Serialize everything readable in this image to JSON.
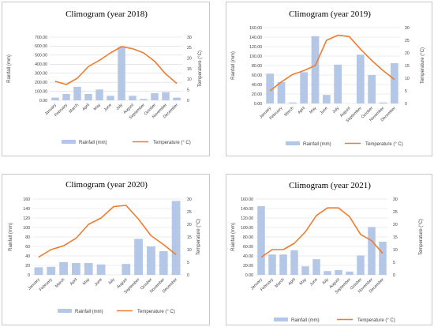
{
  "colors": {
    "rain": "#b4c7e7",
    "temp": "#ed7d31",
    "grid": "#d9d9d9",
    "text": "#404040"
  },
  "legend": {
    "rain": "Rainfall (mm)",
    "temp": "Temperature (° C)"
  },
  "chart_data": [
    {
      "type": "bar",
      "title": "Climogram (year 2018)",
      "ylabel": "Rainfall (mm)",
      "y2label": "Temperature (°C)",
      "categories": [
        "January",
        "February",
        "March",
        "April",
        "May",
        "June",
        "July",
        "August",
        "September",
        "October",
        "November",
        "December"
      ],
      "ylim": [
        0,
        700
      ],
      "y_ticks": [
        "0.00",
        "100.00",
        "200.00",
        "300.00",
        "400.00",
        "500.00",
        "600.00",
        "700.00"
      ],
      "y2lim": [
        0,
        30
      ],
      "y2_ticks": [
        "0",
        "5",
        "10",
        "15",
        "20",
        "25",
        "30"
      ],
      "series": [
        {
          "name": "Rainfall (mm)",
          "kind": "bar",
          "axis": "left",
          "values": [
            30,
            70,
            150,
            70,
            120,
            50,
            590,
            50,
            15,
            80,
            90,
            30
          ]
        },
        {
          "name": "Temperature (° C)",
          "kind": "line",
          "axis": "right",
          "values": [
            9,
            7.5,
            10.5,
            16,
            19,
            22.5,
            25.5,
            24.5,
            22.5,
            18.5,
            12.5,
            8
          ]
        }
      ],
      "grid": true,
      "legend": "bottom"
    },
    {
      "type": "bar",
      "title": "Climogram (year 2019)",
      "ylabel": "Rainfall (mm)",
      "y2label": "Temperature (°C)",
      "categories": [
        "January",
        "February",
        "March",
        "April",
        "May",
        "June",
        "July",
        "August",
        "September",
        "October",
        "November",
        "December"
      ],
      "ylim": [
        0,
        160
      ],
      "y_ticks": [
        "0.00",
        "20.00",
        "40.00",
        "60.00",
        "80.00",
        "100.00",
        "120.00",
        "140.00",
        "160.00"
      ],
      "y2lim": [
        0,
        30
      ],
      "y2_ticks": [
        "0",
        "5",
        "10",
        "15",
        "20",
        "25",
        "30"
      ],
      "series": [
        {
          "name": "Rainfall (mm)",
          "kind": "bar",
          "axis": "left",
          "values": [
            63,
            45,
            2,
            66,
            142,
            18,
            82,
            0,
            103,
            60,
            2,
            85
          ]
        },
        {
          "name": "Temperature (° C)",
          "kind": "line",
          "axis": "right",
          "values": [
            5,
            8.5,
            11.5,
            13,
            15,
            25,
            27,
            26.5,
            21.5,
            17,
            13,
            9.5
          ]
        }
      ],
      "grid": true,
      "legend": "bottom"
    },
    {
      "type": "bar",
      "title": "Climogram (year 2020)",
      "ylabel": "Rainfall (mm)",
      "y2label": "Temperature (°C)",
      "categories": [
        "January",
        "February",
        "March",
        "April",
        "May",
        "June",
        "July",
        "August",
        "September",
        "October",
        "November",
        "December"
      ],
      "ylim": [
        0,
        160
      ],
      "y_ticks": [
        "0",
        "20",
        "40",
        "60",
        "80",
        "100",
        "120",
        "140",
        "160"
      ],
      "y2lim": [
        0,
        30
      ],
      "y2_ticks": [
        "0",
        "5",
        "10",
        "15",
        "20",
        "25",
        "30"
      ],
      "series": [
        {
          "name": "Rainfall (mm)",
          "kind": "bar",
          "axis": "left",
          "values": [
            16,
            17,
            27,
            25,
            25,
            22,
            0,
            23,
            76,
            60,
            50,
            156
          ]
        },
        {
          "name": "Temperature (° C)",
          "kind": "line",
          "axis": "right",
          "values": [
            7,
            10,
            11.5,
            14.5,
            20,
            22.5,
            27,
            27.5,
            22,
            15.5,
            12,
            8
          ]
        }
      ],
      "grid": true,
      "legend": "bottom"
    },
    {
      "type": "bar",
      "title": "Climogram (year 2021)",
      "ylabel": "Rainfall (mm)",
      "y2label": "Temperature (°C)",
      "categories": [
        "January",
        "February",
        "March",
        "April",
        "May",
        "June",
        "July",
        "August",
        "September",
        "October",
        "November",
        "December"
      ],
      "ylim": [
        0,
        160
      ],
      "y_ticks": [
        "0.00",
        "20.00",
        "40.00",
        "60.00",
        "80.00",
        "100.00",
        "120.00",
        "140.00",
        "160.00"
      ],
      "y2lim": [
        0,
        30
      ],
      "y2_ticks": [
        "0",
        "5",
        "10",
        "15",
        "20",
        "25",
        "30"
      ],
      "series": [
        {
          "name": "Rainfall (mm)",
          "kind": "bar",
          "axis": "left",
          "values": [
            145,
            43,
            43,
            52,
            18,
            33,
            8,
            10,
            7,
            41,
            101,
            70
          ]
        },
        {
          "name": "Temperature (° C)",
          "kind": "line",
          "axis": "right",
          "values": [
            7,
            10,
            10,
            12.5,
            17,
            23.5,
            26.5,
            26.5,
            23,
            16,
            13.5,
            8.5
          ]
        }
      ],
      "grid": true,
      "legend": "bottom"
    }
  ]
}
